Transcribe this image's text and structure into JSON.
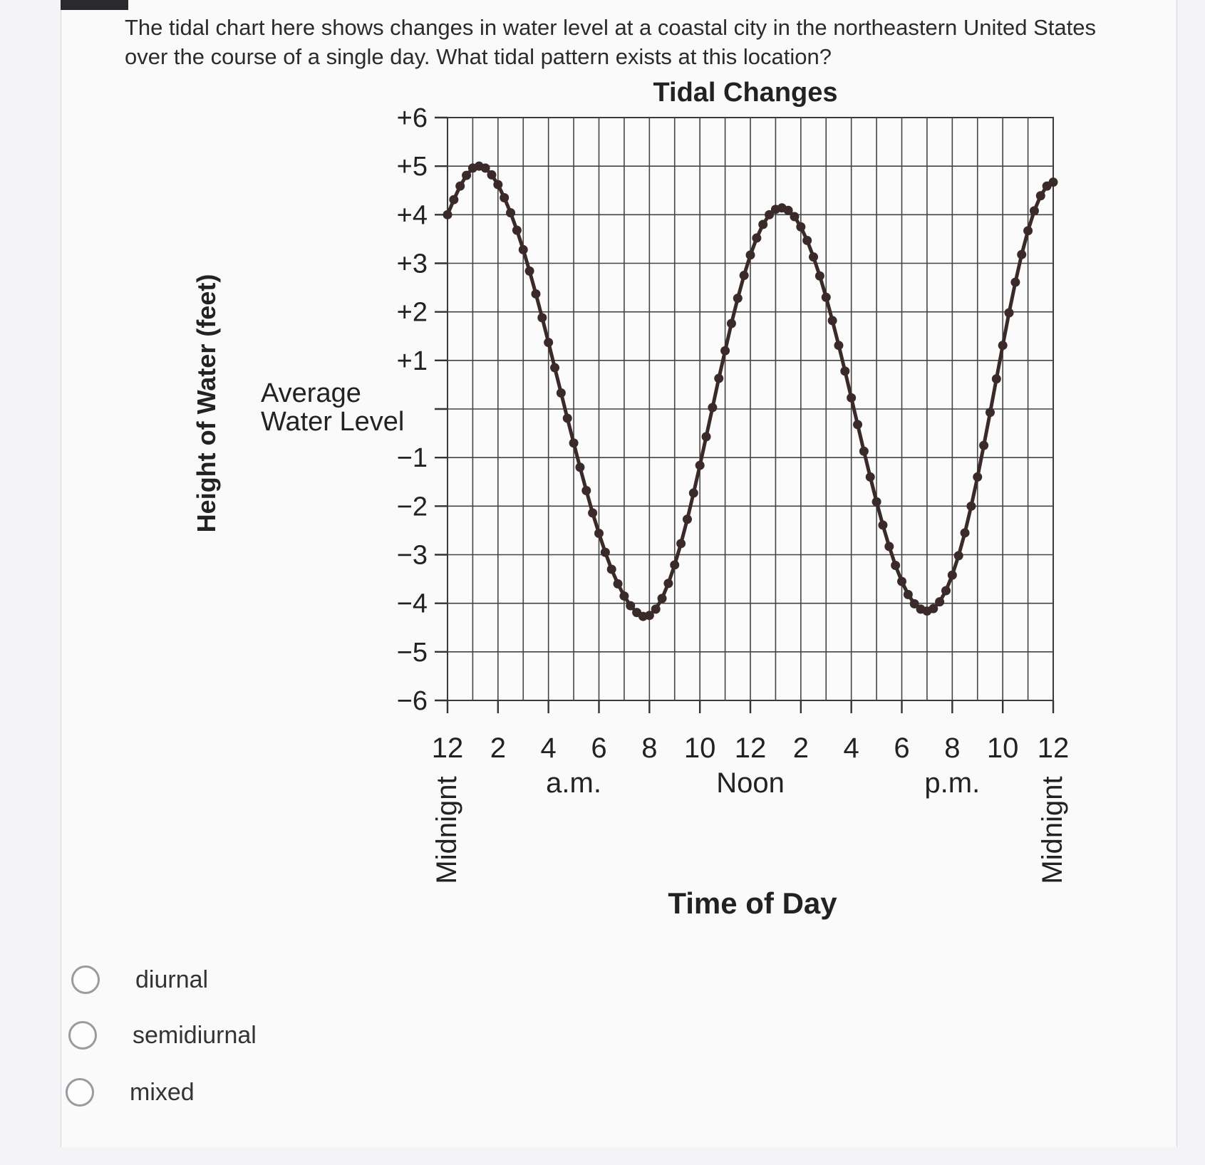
{
  "question": {
    "text": "The tidal chart here shows changes in water level at a coastal city in the northeastern United States over the course of a single day. What tidal pattern exists at this location?"
  },
  "options": [
    {
      "label": "diurnal",
      "selected": false
    },
    {
      "label": "semidiurnal",
      "selected": false
    },
    {
      "label": "mixed",
      "selected": false
    }
  ],
  "chart_data": {
    "type": "line",
    "title": "Tidal Changes",
    "xlabel": "Time of Day",
    "ylabel": "Height of Water (feet)",
    "xlim": [
      0,
      24
    ],
    "ylim": [
      -6,
      6
    ],
    "grid": true,
    "x_ticks": [
      {
        "value": 0,
        "label": "12"
      },
      {
        "value": 2,
        "label": "2"
      },
      {
        "value": 4,
        "label": "4"
      },
      {
        "value": 6,
        "label": "6"
      },
      {
        "value": 8,
        "label": "8"
      },
      {
        "value": 10,
        "label": "10"
      },
      {
        "value": 12,
        "label": "12"
      },
      {
        "value": 14,
        "label": "2"
      },
      {
        "value": 16,
        "label": "4"
      },
      {
        "value": 18,
        "label": "6"
      },
      {
        "value": 20,
        "label": "8"
      },
      {
        "value": 22,
        "label": "10"
      },
      {
        "value": 24,
        "label": "12"
      }
    ],
    "x_group_labels": [
      {
        "value": 5,
        "label": "a.m."
      },
      {
        "value": 12,
        "label": "Noon"
      },
      {
        "value": 20,
        "label": "p.m."
      }
    ],
    "x_end_labels": [
      {
        "value": 0,
        "label": "Midnignt"
      },
      {
        "value": 24,
        "label": "Midnignt"
      }
    ],
    "y_ticks": [
      {
        "value": 6,
        "label": "+6"
      },
      {
        "value": 5,
        "label": "+5"
      },
      {
        "value": 4,
        "label": "+4"
      },
      {
        "value": 3,
        "label": "+3"
      },
      {
        "value": 2,
        "label": "+2"
      },
      {
        "value": 1,
        "label": "+1"
      },
      {
        "value": 0,
        "label": "Average\nWater Level"
      },
      {
        "value": -1,
        "label": "−1"
      },
      {
        "value": -2,
        "label": "−2"
      },
      {
        "value": -3,
        "label": "−3"
      },
      {
        "value": -4,
        "label": "−4"
      },
      {
        "value": -5,
        "label": "−5"
      },
      {
        "value": -6,
        "label": "−6"
      }
    ],
    "series": [
      {
        "color": "#3a2a2a",
        "x": [
          0,
          0.25,
          0.5,
          0.75,
          1,
          1.25,
          1.5,
          1.75,
          2,
          2.25,
          2.5,
          2.75,
          3,
          3.25,
          3.5,
          3.75,
          4,
          4.25,
          4.5,
          4.75,
          5,
          5.25,
          5.5,
          5.75,
          6,
          6.25,
          6.5,
          6.75,
          7,
          7.25,
          7.5,
          7.75,
          8,
          8.25,
          8.5,
          8.75,
          9,
          9.25,
          9.5,
          9.75,
          10,
          10.25,
          10.5,
          10.75,
          11,
          11.25,
          11.5,
          11.75,
          12,
          12.25,
          12.5,
          12.75,
          13,
          13.25,
          13.5,
          13.75,
          14,
          14.25,
          14.5,
          14.75,
          15,
          15.25,
          15.5,
          15.75,
          16,
          16.25,
          16.5,
          16.75,
          17,
          17.25,
          17.5,
          17.75,
          18,
          18.25,
          18.5,
          18.75,
          19,
          19.25,
          19.5,
          19.75,
          20,
          20.25,
          20.5,
          20.75,
          21,
          21.25,
          21.5,
          21.75,
          22,
          22.25,
          22.5,
          22.75,
          23,
          23.25,
          23.5,
          23.75,
          24
        ],
        "values": [
          4.0,
          4.31,
          4.59,
          4.81,
          4.96,
          5.0,
          4.96,
          4.82,
          4.62,
          4.35,
          4.04,
          3.68,
          3.28,
          2.84,
          2.37,
          1.88,
          1.37,
          0.85,
          0.33,
          -0.19,
          -0.7,
          -1.2,
          -1.68,
          -2.14,
          -2.56,
          -2.95,
          -3.3,
          -3.6,
          -3.85,
          -4.05,
          -4.19,
          -4.27,
          -4.25,
          -4.12,
          -3.9,
          -3.59,
          -3.21,
          -2.77,
          -2.27,
          -1.73,
          -1.16,
          -0.57,
          0.03,
          0.63,
          1.2,
          1.76,
          2.28,
          2.75,
          3.17,
          3.52,
          3.8,
          4.0,
          4.11,
          4.14,
          4.09,
          3.96,
          3.75,
          3.47,
          3.13,
          2.74,
          2.3,
          1.82,
          1.31,
          0.78,
          0.23,
          -0.32,
          -0.87,
          -1.4,
          -1.91,
          -2.39,
          -2.83,
          -3.22,
          -3.55,
          -3.82,
          -4.01,
          -4.12,
          -4.16,
          -4.11,
          -3.97,
          -3.74,
          -3.42,
          -3.02,
          -2.55,
          -2.0,
          -1.4,
          -0.75,
          -0.07,
          0.62,
          1.31,
          1.98,
          2.61,
          3.18,
          3.67,
          4.08,
          4.39,
          4.59,
          4.67
        ]
      }
    ]
  }
}
